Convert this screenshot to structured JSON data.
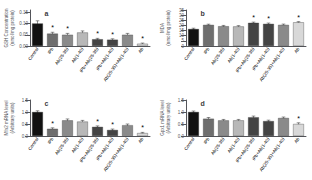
{
  "chart_data": [
    {
      "type": "bar",
      "title": "a",
      "ylabel": "GSH Concentration\n(nmol/mg protein)",
      "categories": [
        "Control",
        "iPb",
        "Ab(25-35)",
        "Ab(1-40)",
        "iPb+Ab(25-35)",
        "iPb+Ab(1-40)",
        "Ab(25-35)+Ab(1-40)",
        "Ab"
      ],
      "values": [
        0.1,
        0.055,
        0.05,
        0.06,
        0.03,
        0.028,
        0.05,
        0.01
      ],
      "errors": [
        0.012,
        0.006,
        0.006,
        0.007,
        0.004,
        0.004,
        0.006,
        0.003
      ],
      "colors": [
        "#111111",
        "#6e6e6e",
        "#8a8a8a",
        "#b8b8b8",
        "#444444",
        "#444444",
        "#8a8a8a",
        "#d8d8d8"
      ],
      "ylim": [
        0,
        0.16
      ],
      "yticks": [
        {
          "value": 0.0,
          "label": "0.00"
        },
        {
          "value": 0.05,
          "label": "0.05"
        },
        {
          "value": 0.1,
          "label": "0.10"
        },
        {
          "value": 0.15,
          "label": "0.15"
        }
      ],
      "annotations": [
        {
          "category": "iPb",
          "text": "*"
        },
        {
          "category": "Ab(25-35)",
          "text": "*"
        },
        {
          "category": "iPb+Ab(25-35)",
          "text": "*"
        },
        {
          "category": "iPb+Ab(1-40)",
          "text": "*"
        },
        {
          "category": "Ab",
          "text": "*"
        }
      ],
      "grid": false
    },
    {
      "type": "bar",
      "title": "b",
      "ylabel": "MDA\n(nmol/mg protein)",
      "categories": [
        "Control",
        "iPb",
        "Ab(25-35)",
        "Ab(1-40)",
        "iPb+Ab(25-35)",
        "iPb+Ab(1-40)",
        "Ab(25-35)+Ab(1-40)",
        "Ab"
      ],
      "values": [
        16.5,
        20.5,
        19.2,
        19.0,
        22.5,
        21.5,
        20.5,
        23.0
      ],
      "errors": [
        0.8,
        0.7,
        0.8,
        0.8,
        0.7,
        0.8,
        0.8,
        0.7
      ],
      "colors": [
        "#111111",
        "#6e6e6e",
        "#8a8a8a",
        "#b8b8b8",
        "#444444",
        "#444444",
        "#8a8a8a",
        "#d8d8d8"
      ],
      "ylim": [
        0,
        35
      ],
      "yticks": [
        0,
        5,
        10,
        15,
        20,
        25,
        30,
        35
      ],
      "annotations": [
        {
          "category": "iPb+Ab(25-35)",
          "text": "*"
        },
        {
          "category": "iPb+Ab(1-40)",
          "text": "*"
        },
        {
          "category": "Ab",
          "text": "*"
        }
      ],
      "grid": false
    },
    {
      "type": "bar",
      "title": "c",
      "ylabel": "Mfn2 mRNA level\n(Arbitrary units)",
      "categories": [
        "Control",
        "iPb",
        "Ab(25-35)",
        "Ab(1-40)",
        "iPb+Ab(25-35)",
        "iPb+Ab(1-40)",
        "Ab(25-35)+Ab(1-40)",
        "Ab"
      ],
      "values": [
        1.0,
        0.3,
        0.65,
        0.6,
        0.38,
        0.25,
        0.45,
        0.12
      ],
      "errors": [
        0.05,
        0.04,
        0.06,
        0.05,
        0.04,
        0.04,
        0.05,
        0.03
      ],
      "colors": [
        "#111111",
        "#6e6e6e",
        "#8a8a8a",
        "#b8b8b8",
        "#444444",
        "#444444",
        "#8a8a8a",
        "#d8d8d8"
      ],
      "ylim": [
        0,
        1.5
      ],
      "yticks": [
        {
          "value": 0.0,
          "label": "0.0"
        },
        {
          "value": 0.5,
          "label": "0.5"
        },
        {
          "value": 1.0,
          "label": "1.0"
        },
        {
          "value": 1.5,
          "label": "1.5"
        }
      ],
      "annotations": [
        {
          "category": "iPb",
          "text": "*"
        },
        {
          "category": "iPb+Ab(25-35)",
          "text": "*"
        },
        {
          "category": "iPb+Ab(1-40)",
          "text": "*"
        },
        {
          "category": "Ab",
          "text": "*"
        }
      ],
      "grid": false
    },
    {
      "type": "bar",
      "title": "d",
      "ylabel": "Gpx1 mRNA level\n(Arbitrary units)",
      "categories": [
        "Control",
        "iPb",
        "Ab(25-35)",
        "Ab(1-40)",
        "iPb+Ab(25-35)",
        "iPb+Ab(1-40)",
        "Ab(25-35)+Ab(1-40)",
        "Ab"
      ],
      "values": [
        1.0,
        0.72,
        0.65,
        0.65,
        0.78,
        0.62,
        0.75,
        0.5
      ],
      "errors": [
        0.04,
        0.05,
        0.04,
        0.04,
        0.05,
        0.04,
        0.04,
        0.05
      ],
      "colors": [
        "#111111",
        "#6e6e6e",
        "#8a8a8a",
        "#b8b8b8",
        "#444444",
        "#444444",
        "#8a8a8a",
        "#d8d8d8"
      ],
      "ylim": [
        0,
        1.5
      ],
      "yticks": [
        {
          "value": 0.0,
          "label": "0.0"
        },
        {
          "value": 0.5,
          "label": "0.5"
        },
        {
          "value": 1.0,
          "label": "1.0"
        },
        {
          "value": 1.5,
          "label": "1.5"
        }
      ],
      "annotations": [
        {
          "category": "Ab",
          "text": "*"
        }
      ],
      "grid": false
    }
  ]
}
